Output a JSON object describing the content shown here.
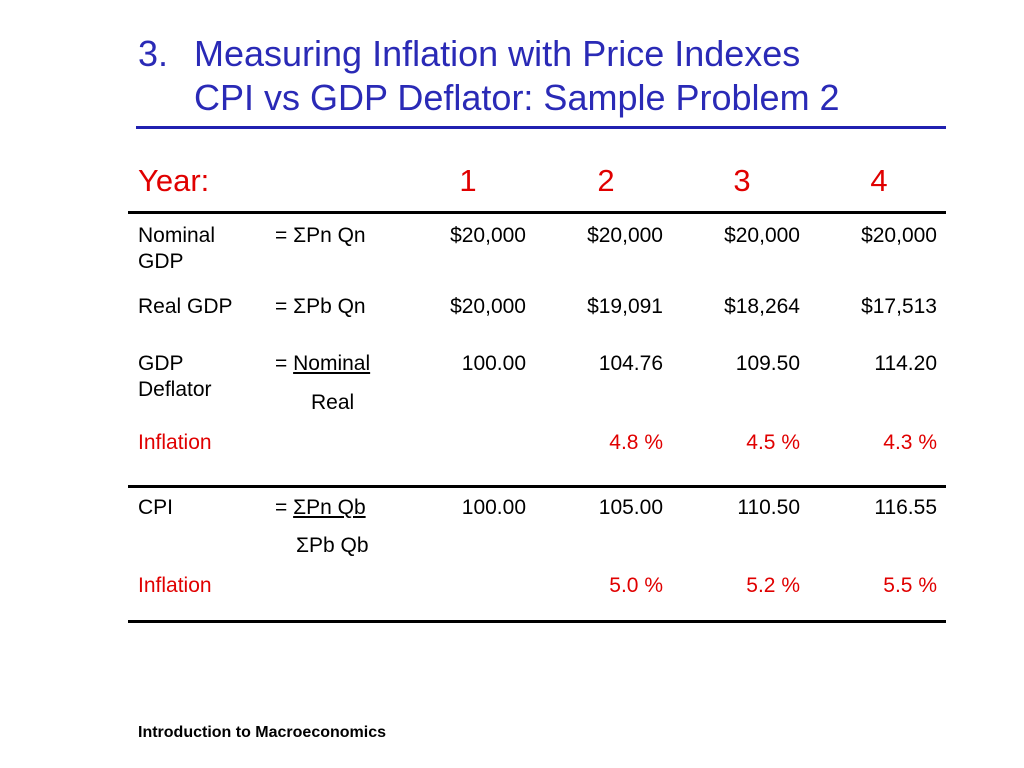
{
  "title": {
    "number": "3.",
    "line1": "Measuring Inflation with Price Indexes",
    "line2": "CPI vs GDP Deflator: Sample Problem 2"
  },
  "year_row": {
    "label": "Year:",
    "years": [
      "1",
      "2",
      "3",
      "4"
    ]
  },
  "rows": {
    "nominal_gdp": {
      "label_line1": "Nominal",
      "label_line2": "GDP",
      "formula": "= ΣPn Qn",
      "values": [
        "$20,000",
        "$20,000",
        "$20,000",
        "$20,000"
      ]
    },
    "real_gdp": {
      "label": "Real GDP",
      "formula": "= ΣPb Qn",
      "values": [
        "$20,000",
        "$19,091",
        "$18,264",
        "$17,513"
      ]
    },
    "gdp_deflator": {
      "label_line1": "GDP",
      "label_line2": "Deflator",
      "formula_eq": "=",
      "formula_numerator": "Nominal",
      "formula_denominator": "Real",
      "values": [
        "100.00",
        "104.76",
        "109.50",
        "114.20"
      ]
    },
    "deflator_inflation": {
      "label": "Inflation",
      "values": [
        "",
        "4.8 %",
        "4.5 %",
        "4.3 %"
      ]
    },
    "cpi": {
      "label": "CPI",
      "formula_eq": "=",
      "formula_numerator": "ΣPn Qb",
      "formula_denominator": "ΣPb Qb",
      "values": [
        "100.00",
        "105.00",
        "110.50",
        "116.55"
      ]
    },
    "cpi_inflation": {
      "label": "Inflation",
      "values": [
        "",
        "5.0 %",
        "5.2 %",
        "5.5 %"
      ]
    }
  },
  "footer": "Introduction to Macroeconomics"
}
